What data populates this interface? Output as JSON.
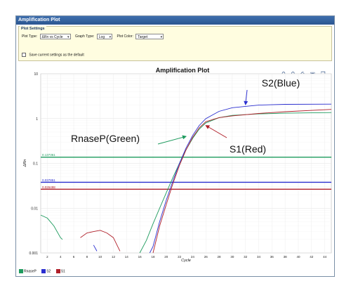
{
  "window": {
    "title": "Amplification Plot"
  },
  "settings": {
    "tab_label": "Plot Settings",
    "plot_type_label": "Plot Type:",
    "plot_type_value": "ΔRn vs Cycle",
    "graph_type_label": "Graph Type:",
    "graph_type_value": "Log",
    "plot_color_label": "Plot Color:",
    "plot_color_value": "Target",
    "save_default_label": "Save current settings as the default"
  },
  "toolbar": [
    "zoom-in-icon",
    "zoom-out-icon",
    "print-icon",
    "save-icon",
    "copy-icon",
    "chart-icon",
    "settings-icon"
  ],
  "colors": {
    "green": "#1e9b5e",
    "blue": "#2b2fd0",
    "red": "#b0202a",
    "window_border": "#7a8fa6",
    "title_bg": "#2b5690"
  },
  "legend": [
    {
      "name": "RnaseP",
      "color": "#1e9b5e"
    },
    {
      "name": "S2",
      "color": "#2b2fd0"
    },
    {
      "name": "S1",
      "color": "#b0202a"
    }
  ],
  "chart_data": {
    "type": "line",
    "title": "Amplification Plot",
    "xlabel": "Cycle",
    "ylabel": "ΔRn",
    "yscale": "log",
    "ylim": [
      0.001,
      10
    ],
    "xlim": [
      1,
      45
    ],
    "y_ticks": [
      "10",
      "1",
      "0.1",
      "0.01",
      "0.001"
    ],
    "x_ticks": [
      "2",
      "4",
      "6",
      "8",
      "10",
      "12",
      "14",
      "16",
      "18",
      "20",
      "22",
      "24",
      "26",
      "28",
      "30",
      "32",
      "34",
      "36",
      "38",
      "40",
      "42",
      "44"
    ],
    "grid": true,
    "thresholds": [
      {
        "label": "0.137361",
        "value": 0.137361,
        "color": "#1e9b5e"
      },
      {
        "label": "0.037851",
        "value": 0.037851,
        "color": "#2b2fd0"
      },
      {
        "label": "0.026498",
        "value": 0.026498,
        "color": "#b0202a"
      }
    ],
    "series": [
      {
        "name": "RnaseP",
        "color": "#1e9b5e",
        "segments": [
          [
            [
              1,
              0.007
            ],
            [
              2,
              0.006
            ],
            [
              3,
              0.004
            ],
            [
              4,
              0.0022
            ],
            [
              4.3,
              0.002
            ]
          ],
          [
            [
              16,
              0.001
            ],
            [
              17,
              0.0019
            ],
            [
              18,
              0.0045
            ],
            [
              19,
              0.01
            ],
            [
              20,
              0.022
            ],
            [
              21,
              0.048
            ],
            [
              22,
              0.1
            ],
            [
              23,
              0.2
            ],
            [
              24,
              0.36
            ],
            [
              25,
              0.58
            ],
            [
              26,
              0.8
            ],
            [
              28,
              1.05
            ],
            [
              30,
              1.18
            ],
            [
              34,
              1.27
            ],
            [
              38,
              1.32
            ],
            [
              45,
              1.36
            ]
          ]
        ]
      },
      {
        "name": "S2",
        "color": "#2b2fd0",
        "segments": [
          [
            [
              9,
              0.0015
            ],
            [
              9.5,
              0.0011
            ]
          ],
          [
            [
              17.5,
              0.001
            ],
            [
              18,
              0.0014
            ],
            [
              19,
              0.005
            ],
            [
              20,
              0.015
            ],
            [
              21,
              0.04
            ],
            [
              22,
              0.1
            ],
            [
              23,
              0.22
            ],
            [
              24,
              0.42
            ],
            [
              25,
              0.7
            ],
            [
              26,
              1.0
            ],
            [
              28,
              1.45
            ],
            [
              30,
              1.75
            ],
            [
              34,
              2.0
            ],
            [
              38,
              2.08
            ],
            [
              45,
              2.1
            ]
          ]
        ]
      },
      {
        "name": "S1",
        "color": "#b0202a",
        "segments": [
          [
            [
              7,
              0.0022
            ],
            [
              8,
              0.0028
            ],
            [
              9,
              0.003
            ],
            [
              10,
              0.0032
            ],
            [
              11,
              0.0028
            ],
            [
              12,
              0.0022
            ],
            [
              13,
              0.0011
            ]
          ],
          [
            [
              18,
              0.001
            ],
            [
              19,
              0.004
            ],
            [
              20,
              0.012
            ],
            [
              21,
              0.035
            ],
            [
              22,
              0.09
            ],
            [
              23,
              0.2
            ],
            [
              24,
              0.38
            ],
            [
              25,
              0.62
            ],
            [
              26,
              0.85
            ],
            [
              28,
              1.05
            ],
            [
              30,
              1.15
            ],
            [
              34,
              1.3
            ],
            [
              38,
              1.42
            ],
            [
              45,
              1.6
            ]
          ]
        ]
      }
    ],
    "annotations": [
      {
        "text": "S2(Blue)",
        "color": "#2b2fd0",
        "target": [
          32,
          2.05
        ]
      },
      {
        "text": "RnaseP(Green)",
        "color": "#1e9b5e",
        "target": [
          23,
          0.4
        ]
      },
      {
        "text": "S1(Red)",
        "color": "#b0202a",
        "target": [
          26,
          0.7
        ]
      }
    ]
  }
}
